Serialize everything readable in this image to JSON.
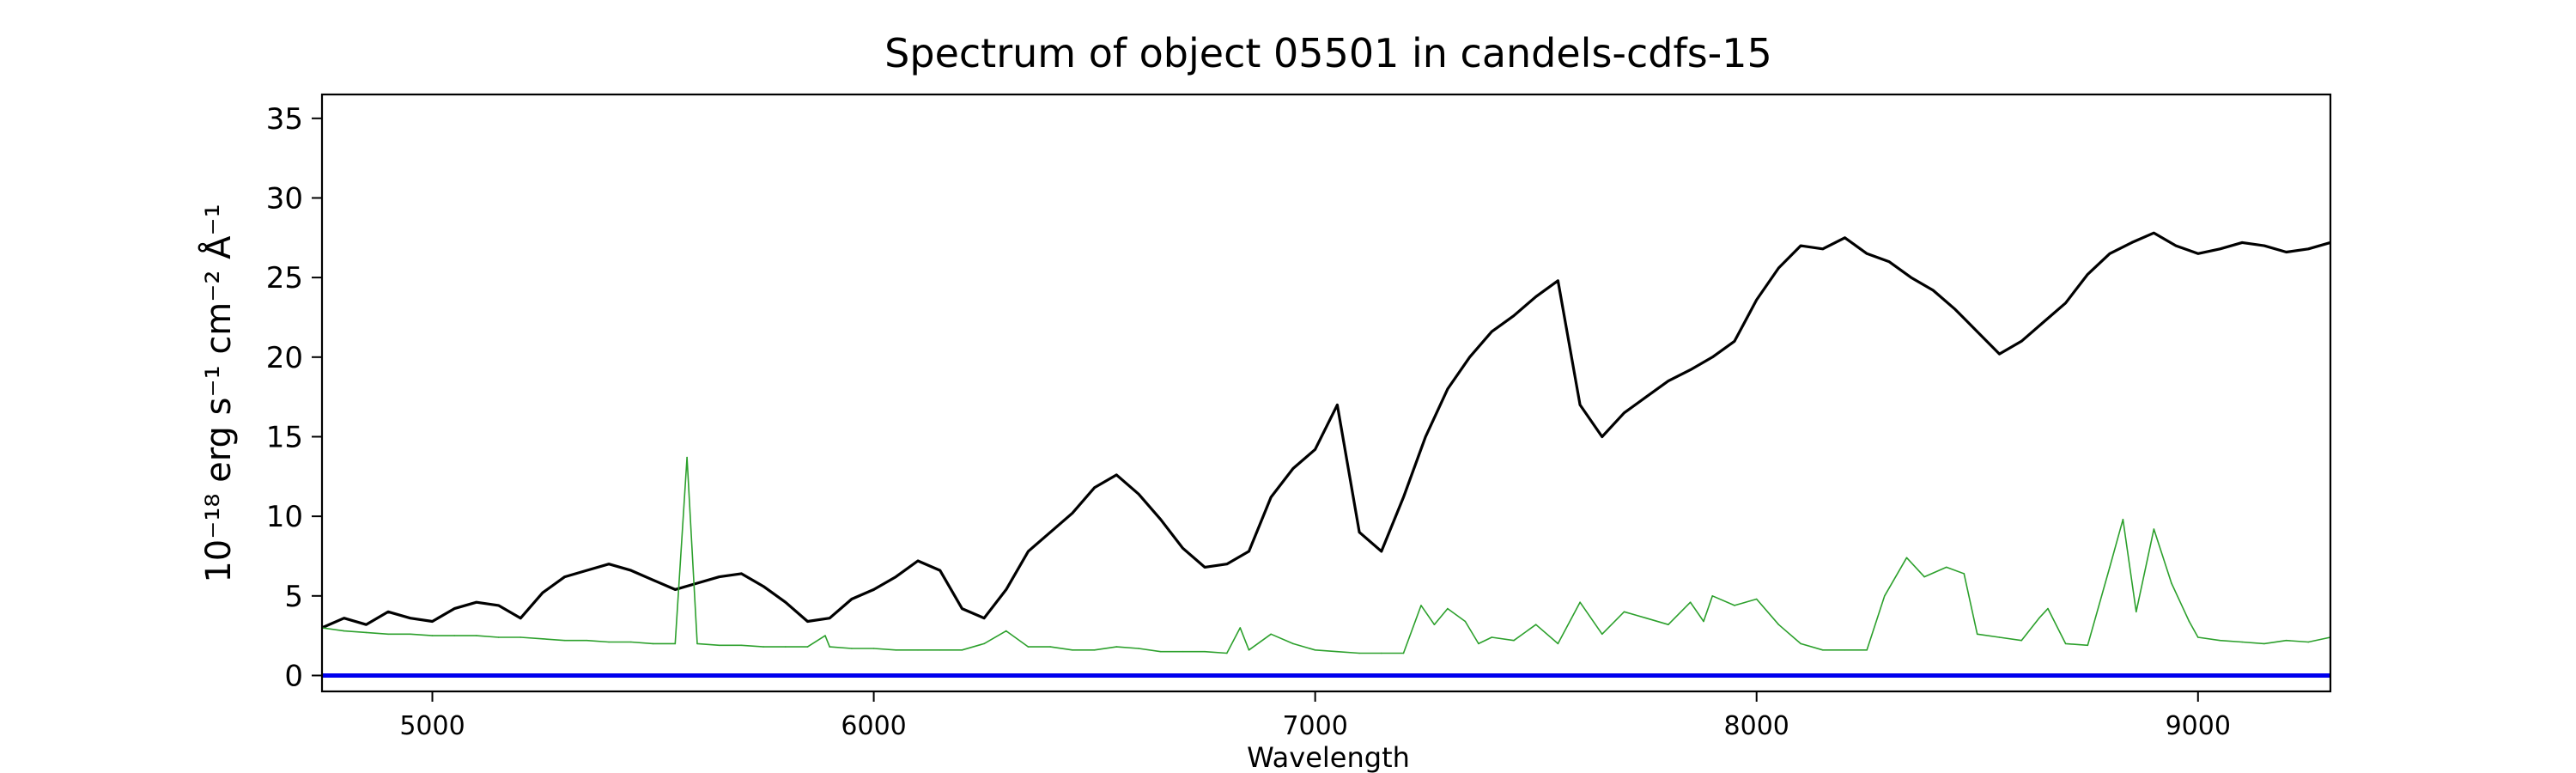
{
  "chart_data": {
    "type": "line",
    "title": "Spectrum of object 05501 in candels-cdfs-15",
    "xlabel": "Wavelength",
    "ylabel": "10⁻¹⁸ erg s⁻¹ cm⁻² Å⁻¹",
    "xlim": [
      4750,
      9300
    ],
    "ylim": [
      -1,
      36.5
    ],
    "xticks": [
      5000,
      6000,
      7000,
      8000,
      9000
    ],
    "yticks": [
      0,
      5,
      10,
      15,
      20,
      25,
      30,
      35
    ],
    "grid": false,
    "legend": "none",
    "colors": {
      "spectrum": "#000000",
      "sky": "#2ca02c",
      "zero": "#0000ee"
    },
    "series": [
      {
        "key": "spectrum",
        "x": [
          4750,
          4800,
          4850,
          4900,
          4950,
          5000,
          5050,
          5100,
          5150,
          5200,
          5250,
          5300,
          5350,
          5400,
          5450,
          5500,
          5550,
          5600,
          5650,
          5700,
          5750,
          5800,
          5850,
          5900,
          5950,
          6000,
          6050,
          6100,
          6150,
          6200,
          6250,
          6300,
          6350,
          6400,
          6450,
          6500,
          6550,
          6600,
          6650,
          6700,
          6750,
          6800,
          6850,
          6900,
          6950,
          7000,
          7050,
          7100,
          7150,
          7200,
          7250,
          7300,
          7350,
          7400,
          7450,
          7500,
          7550,
          7600,
          7650,
          7700,
          7750,
          7800,
          7850,
          7900,
          7950,
          8000,
          8050,
          8100,
          8150,
          8200,
          8250,
          8300,
          8350,
          8400,
          8450,
          8500,
          8550,
          8600,
          8650,
          8700,
          8750,
          8800,
          8850,
          8900,
          8950,
          9000,
          9050,
          9100,
          9150,
          9200,
          9250,
          9300
        ],
        "y": [
          3.0,
          3.6,
          3.2,
          4.0,
          3.6,
          3.4,
          4.2,
          4.6,
          4.4,
          3.6,
          5.2,
          6.2,
          6.6,
          7.0,
          6.6,
          6.0,
          5.4,
          5.8,
          6.2,
          6.4,
          5.6,
          4.6,
          3.4,
          3.6,
          4.8,
          5.4,
          6.2,
          7.2,
          6.6,
          4.2,
          3.6,
          5.4,
          7.8,
          9.0,
          10.2,
          11.8,
          12.6,
          11.4,
          9.8,
          8.0,
          6.8,
          7.0,
          7.8,
          11.2,
          13.0,
          14.2,
          17.0,
          9.0,
          7.8,
          11.2,
          15.0,
          18.0,
          20.0,
          21.6,
          22.6,
          23.8,
          24.8,
          17.0,
          15.0,
          16.5,
          17.5,
          18.5,
          19.2,
          20.0,
          21.0,
          23.6,
          25.6,
          27.0,
          26.8,
          27.5,
          26.5,
          26.0,
          25.0,
          24.2,
          23.0,
          21.6,
          20.2,
          21.0,
          22.2,
          23.4,
          25.2,
          26.5,
          27.2,
          27.8,
          27.0,
          26.5,
          26.8,
          27.2,
          27.0,
          26.6,
          26.8,
          27.2
        ]
      },
      {
        "key": "sky",
        "x": [
          4750,
          4800,
          4850,
          4900,
          4950,
          5000,
          5050,
          5100,
          5150,
          5200,
          5250,
          5300,
          5350,
          5400,
          5450,
          5500,
          5550,
          5577,
          5600,
          5650,
          5700,
          5750,
          5800,
          5850,
          5890,
          5900,
          5950,
          6000,
          6050,
          6100,
          6150,
          6200,
          6250,
          6300,
          6350,
          6400,
          6450,
          6500,
          6550,
          6600,
          6650,
          6700,
          6750,
          6800,
          6830,
          6850,
          6900,
          6950,
          7000,
          7050,
          7100,
          7150,
          7200,
          7240,
          7270,
          7300,
          7340,
          7370,
          7400,
          7450,
          7500,
          7550,
          7600,
          7650,
          7700,
          7750,
          7800,
          7850,
          7880,
          7900,
          7950,
          8000,
          8050,
          8100,
          8150,
          8200,
          8250,
          8290,
          8340,
          8380,
          8430,
          8470,
          8500,
          8550,
          8600,
          8640,
          8660,
          8700,
          8750,
          8800,
          8830,
          8860,
          8900,
          8940,
          8980,
          9000,
          9050,
          9100,
          9150,
          9200,
          9250,
          9300
        ],
        "y": [
          3.0,
          2.8,
          2.7,
          2.6,
          2.6,
          2.5,
          2.5,
          2.5,
          2.4,
          2.4,
          2.3,
          2.2,
          2.2,
          2.1,
          2.1,
          2.0,
          2.0,
          13.7,
          2.0,
          1.9,
          1.9,
          1.8,
          1.8,
          1.8,
          2.5,
          1.8,
          1.7,
          1.7,
          1.6,
          1.6,
          1.6,
          1.6,
          2.0,
          2.8,
          1.8,
          1.8,
          1.6,
          1.6,
          1.8,
          1.7,
          1.5,
          1.5,
          1.5,
          1.4,
          3.0,
          1.6,
          2.6,
          2.0,
          1.6,
          1.5,
          1.4,
          1.4,
          1.4,
          4.4,
          3.2,
          4.2,
          3.4,
          2.0,
          2.4,
          2.2,
          3.2,
          2.0,
          4.6,
          2.6,
          4.0,
          3.6,
          3.2,
          4.6,
          3.4,
          5.0,
          4.4,
          4.8,
          3.2,
          2.0,
          1.6,
          1.6,
          1.6,
          5.0,
          7.4,
          6.2,
          6.8,
          6.4,
          2.6,
          2.4,
          2.2,
          3.6,
          4.2,
          2.0,
          1.9,
          6.8,
          9.8,
          4.0,
          9.2,
          5.8,
          3.4,
          2.4,
          2.2,
          2.1,
          2.0,
          2.2,
          2.1,
          2.4
        ]
      }
    ]
  }
}
